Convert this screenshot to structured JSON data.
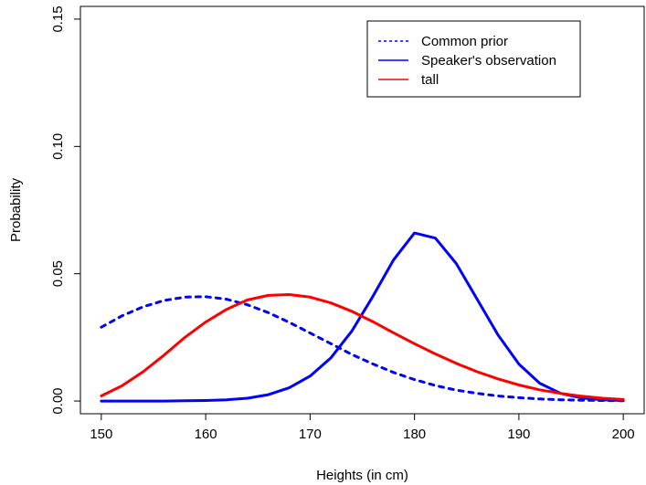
{
  "chart_data": {
    "type": "line",
    "xlabel": "Heights (in cm)",
    "ylabel": "Probability",
    "xlim": [
      148,
      202
    ],
    "ylim": [
      -0.005,
      0.155
    ],
    "x_ticks": [
      150,
      160,
      170,
      180,
      190,
      200
    ],
    "x_tick_labels": [
      "150",
      "160",
      "170",
      "180",
      "190",
      "200"
    ],
    "y_ticks": [
      0.0,
      0.05,
      0.1,
      0.15
    ],
    "y_tick_labels": [
      "0.00",
      "0.05",
      "0.10",
      "0.15"
    ],
    "grid": false,
    "legend_position": "top-right",
    "x": [
      150,
      152,
      154,
      156,
      158,
      160,
      162,
      164,
      166,
      168,
      170,
      172,
      174,
      176,
      178,
      180,
      182,
      184,
      186,
      188,
      190,
      192,
      194,
      196,
      198,
      200
    ],
    "series": [
      {
        "name": "Common prior",
        "color": "#0000ff",
        "line_style": "dashed",
        "values": [
          0.029,
          0.0335,
          0.037,
          0.0395,
          0.0408,
          0.041,
          0.04,
          0.0378,
          0.0347,
          0.0309,
          0.0267,
          0.0225,
          0.0183,
          0.0146,
          0.0112,
          0.0084,
          0.0061,
          0.0043,
          0.003,
          0.002,
          0.0013,
          0.0008,
          0.0005,
          0.0003,
          0.0002,
          0.0001
        ]
      },
      {
        "name": "Speaker's observation",
        "color": "#0000ff",
        "line_style": "solid",
        "values": [
          0.0,
          0.0,
          0.0,
          0.0,
          0.0001,
          0.0002,
          0.0005,
          0.0011,
          0.0025,
          0.0052,
          0.0098,
          0.017,
          0.0275,
          0.041,
          0.0555,
          0.066,
          0.064,
          0.054,
          0.04,
          0.026,
          0.0145,
          0.007,
          0.003,
          0.0012,
          0.0005,
          0.0002
        ]
      },
      {
        "name": "tall",
        "color": "#ff0000",
        "line_style": "solid",
        "values": [
          0.002,
          0.006,
          0.0115,
          0.018,
          0.025,
          0.031,
          0.036,
          0.0397,
          0.0415,
          0.0418,
          0.0408,
          0.0385,
          0.0352,
          0.0312,
          0.0268,
          0.0225,
          0.0185,
          0.0148,
          0.0115,
          0.0087,
          0.0063,
          0.0044,
          0.003,
          0.0019,
          0.0011,
          0.0006
        ]
      }
    ]
  }
}
